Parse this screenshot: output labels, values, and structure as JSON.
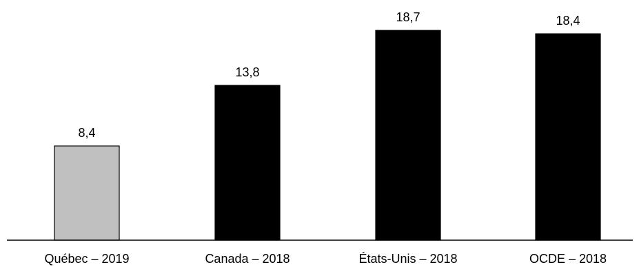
{
  "chart_data": {
    "type": "bar",
    "categories": [
      "Québec – 2019",
      "Canada – 2018",
      "États-Unis – 2018",
      "OCDE  – 2018"
    ],
    "values": [
      8.4,
      13.8,
      18.7,
      18.4
    ],
    "data_labels": [
      "8,4",
      "13,8",
      "18,7",
      "18,4"
    ],
    "bar_colors": [
      "#c0c0c0",
      "#000000",
      "#000000",
      "#000000"
    ],
    "bar_outline": "#000000",
    "axis_color": "#000000",
    "title": "",
    "xlabel": "",
    "ylabel": "",
    "ylim": [
      0,
      21
    ],
    "grid": false,
    "legend": "none"
  }
}
